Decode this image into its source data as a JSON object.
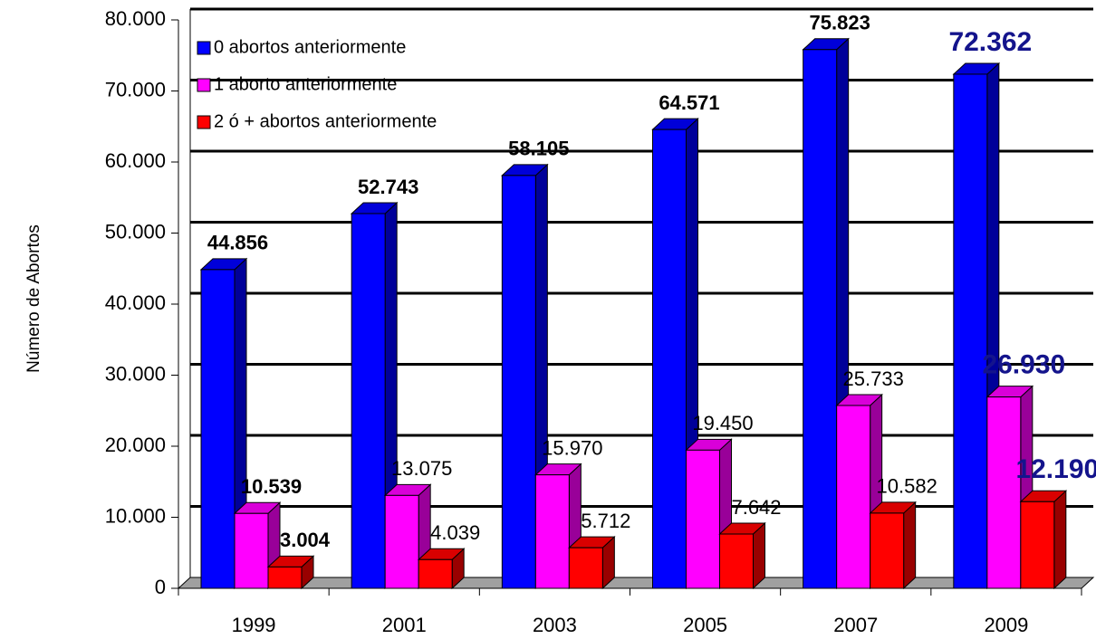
{
  "chart_data": {
    "type": "bar3d",
    "y_axis_label": "Número de Abortos",
    "categories": [
      "1999",
      "2001",
      "2003",
      "2005",
      "2007",
      "2009"
    ],
    "series": [
      {
        "name": "0 abortos anteriormente",
        "color": "#0000ff",
        "values": [
          44856,
          52743,
          58105,
          64571,
          75823,
          72362
        ],
        "value_labels": [
          "44.856",
          "52.743",
          "58.105",
          "64.571",
          "75.823",
          "72.362"
        ]
      },
      {
        "name": "1 aborto anteriormente",
        "color": "#ff00ff",
        "values": [
          10539,
          13075,
          15970,
          19450,
          25733,
          26930
        ],
        "value_labels": [
          "10.539",
          "13.075",
          "15.970",
          "19.450",
          "25.733",
          "26.930"
        ]
      },
      {
        "name": "2 ó + abortos anteriormente",
        "color": "#ff0000",
        "values": [
          3004,
          4039,
          5712,
          7642,
          10582,
          12190
        ],
        "value_labels": [
          "3.004",
          "4.039",
          "5.712",
          "7.642",
          "10.582",
          "12.190"
        ]
      }
    ],
    "ylim": [
      0,
      80000
    ],
    "yticks": [
      0,
      {
        "value": 10000,
        "label": "10.000"
      },
      {
        "value": 20000,
        "label": "20.000"
      },
      {
        "value": 30000,
        "label": "30.000"
      },
      {
        "value": 40000,
        "label": "40.000"
      },
      {
        "value": 50000,
        "label": "50.000"
      },
      {
        "value": 60000,
        "label": "60.000"
      },
      {
        "value": 70000,
        "label": "70.000"
      },
      {
        "value": 80000,
        "label": "80.000"
      }
    ],
    "grid": true,
    "legend": "top-left"
  }
}
